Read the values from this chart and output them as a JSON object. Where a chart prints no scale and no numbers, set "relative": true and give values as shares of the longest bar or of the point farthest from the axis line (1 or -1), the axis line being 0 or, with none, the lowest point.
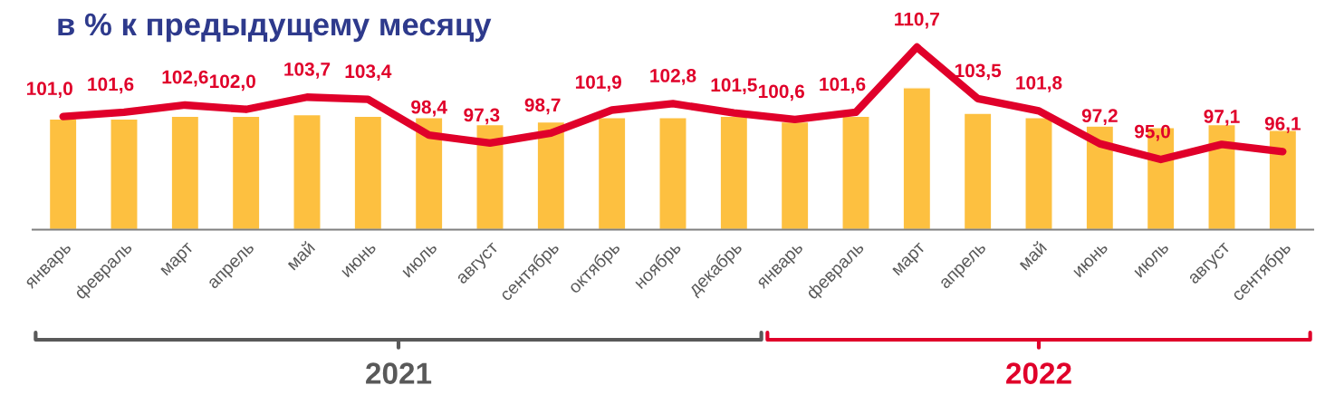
{
  "chart_data": [
    {
      "type": "bar",
      "title": "в % к предыдущему месяцу",
      "relative": true,
      "grid": false,
      "categories": [
        "январь",
        "февраль",
        "март",
        "апрель",
        "май",
        "июнь",
        "июль",
        "август",
        "сентябрь",
        "октябрь",
        "ноябрь",
        "декабрь",
        "январь",
        "февраль",
        "март",
        "апрель",
        "май",
        "июнь",
        "июль",
        "август",
        "сентябрь"
      ],
      "color": "#fdc040",
      "values": [
        0.78,
        0.78,
        0.8,
        0.8,
        0.81,
        0.8,
        0.79,
        0.74,
        0.76,
        0.79,
        0.79,
        0.8,
        0.76,
        0.8,
        1,
        0.82,
        0.79,
        0.73,
        0.72,
        0.74,
        0.7
      ],
      "annotations": [
        "2021",
        "2022"
      ]
    },
    {
      "type": "line",
      "grid": false,
      "color": "#e0002a",
      "values": [
        101.0,
        101.6,
        102.6,
        102.0,
        103.7,
        103.4,
        98.4,
        97.3,
        98.7,
        101.9,
        102.8,
        101.5,
        100.6,
        101.6,
        110.7,
        103.5,
        101.8,
        97.2,
        95.0,
        97.1,
        96.1
      ],
      "value_labels": [
        "101,0",
        "101,6",
        "102,6",
        "102,0",
        "103,7",
        "103,4",
        "98,4",
        "97,3",
        "98,7",
        "101,9",
        "102,8",
        "101,5",
        "100,6",
        "101,6",
        "110,7",
        "103,5",
        "101,8",
        "97,2",
        "95,0",
        "97,1",
        "96,1"
      ]
    }
  ]
}
